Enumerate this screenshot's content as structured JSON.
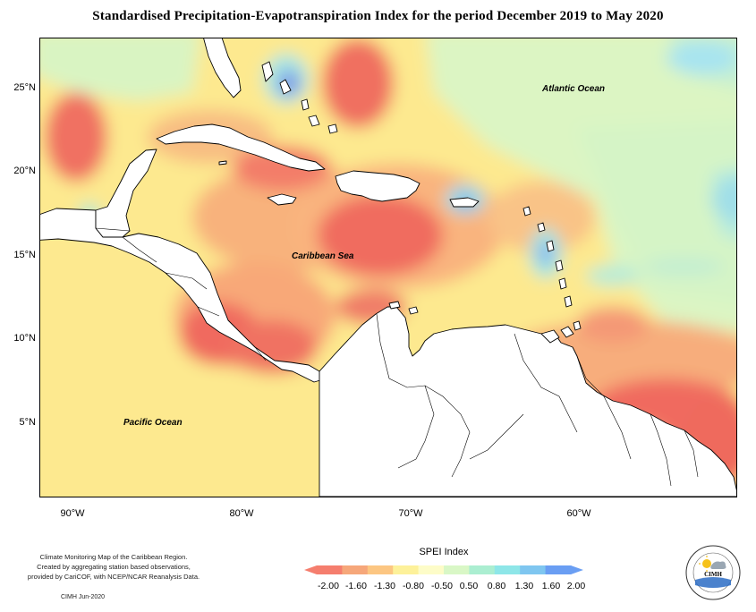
{
  "title": "Standardised Precipitation-Evapotranspiration Index for the period December 2019 to May 2020",
  "map": {
    "lat_ticks": [
      "25°N",
      "20°N",
      "15°N",
      "10°N",
      "5°N"
    ],
    "lon_ticks": [
      "90°W",
      "80°W",
      "70°W",
      "60°W"
    ],
    "labels": {
      "atlantic": "Atlantic Ocean",
      "caribbean": "Caribbean Sea",
      "pacific": "Pacific Ocean"
    },
    "extent": {
      "lon": [
        -92,
        -52
      ],
      "lat": [
        1,
        28
      ]
    }
  },
  "legend": {
    "title": "SPEI Index",
    "ticks": [
      "-2.00",
      "-1.60",
      "-1.30",
      "-0.80",
      "-0.50",
      "0.50",
      "0.80",
      "1.30",
      "1.60",
      "2.00"
    ],
    "colors": [
      "#f57e6e",
      "#f6a77a",
      "#fcc682",
      "#fdf19a",
      "#fdfcc8",
      "#d9f7c6",
      "#abeed1",
      "#8ee6e8",
      "#7fc6f0",
      "#6a9ef3"
    ]
  },
  "notes": {
    "line1": "Climate Monitoring Map of the Caribbean Region.",
    "line2": "Created by aggregating station based observations,",
    "line3": "provided by CariCOF, with NCEP/NCAR Reanalysis Data.",
    "credit": "CIMH  Jun-2020"
  },
  "logo": {
    "text": "CIMH"
  }
}
